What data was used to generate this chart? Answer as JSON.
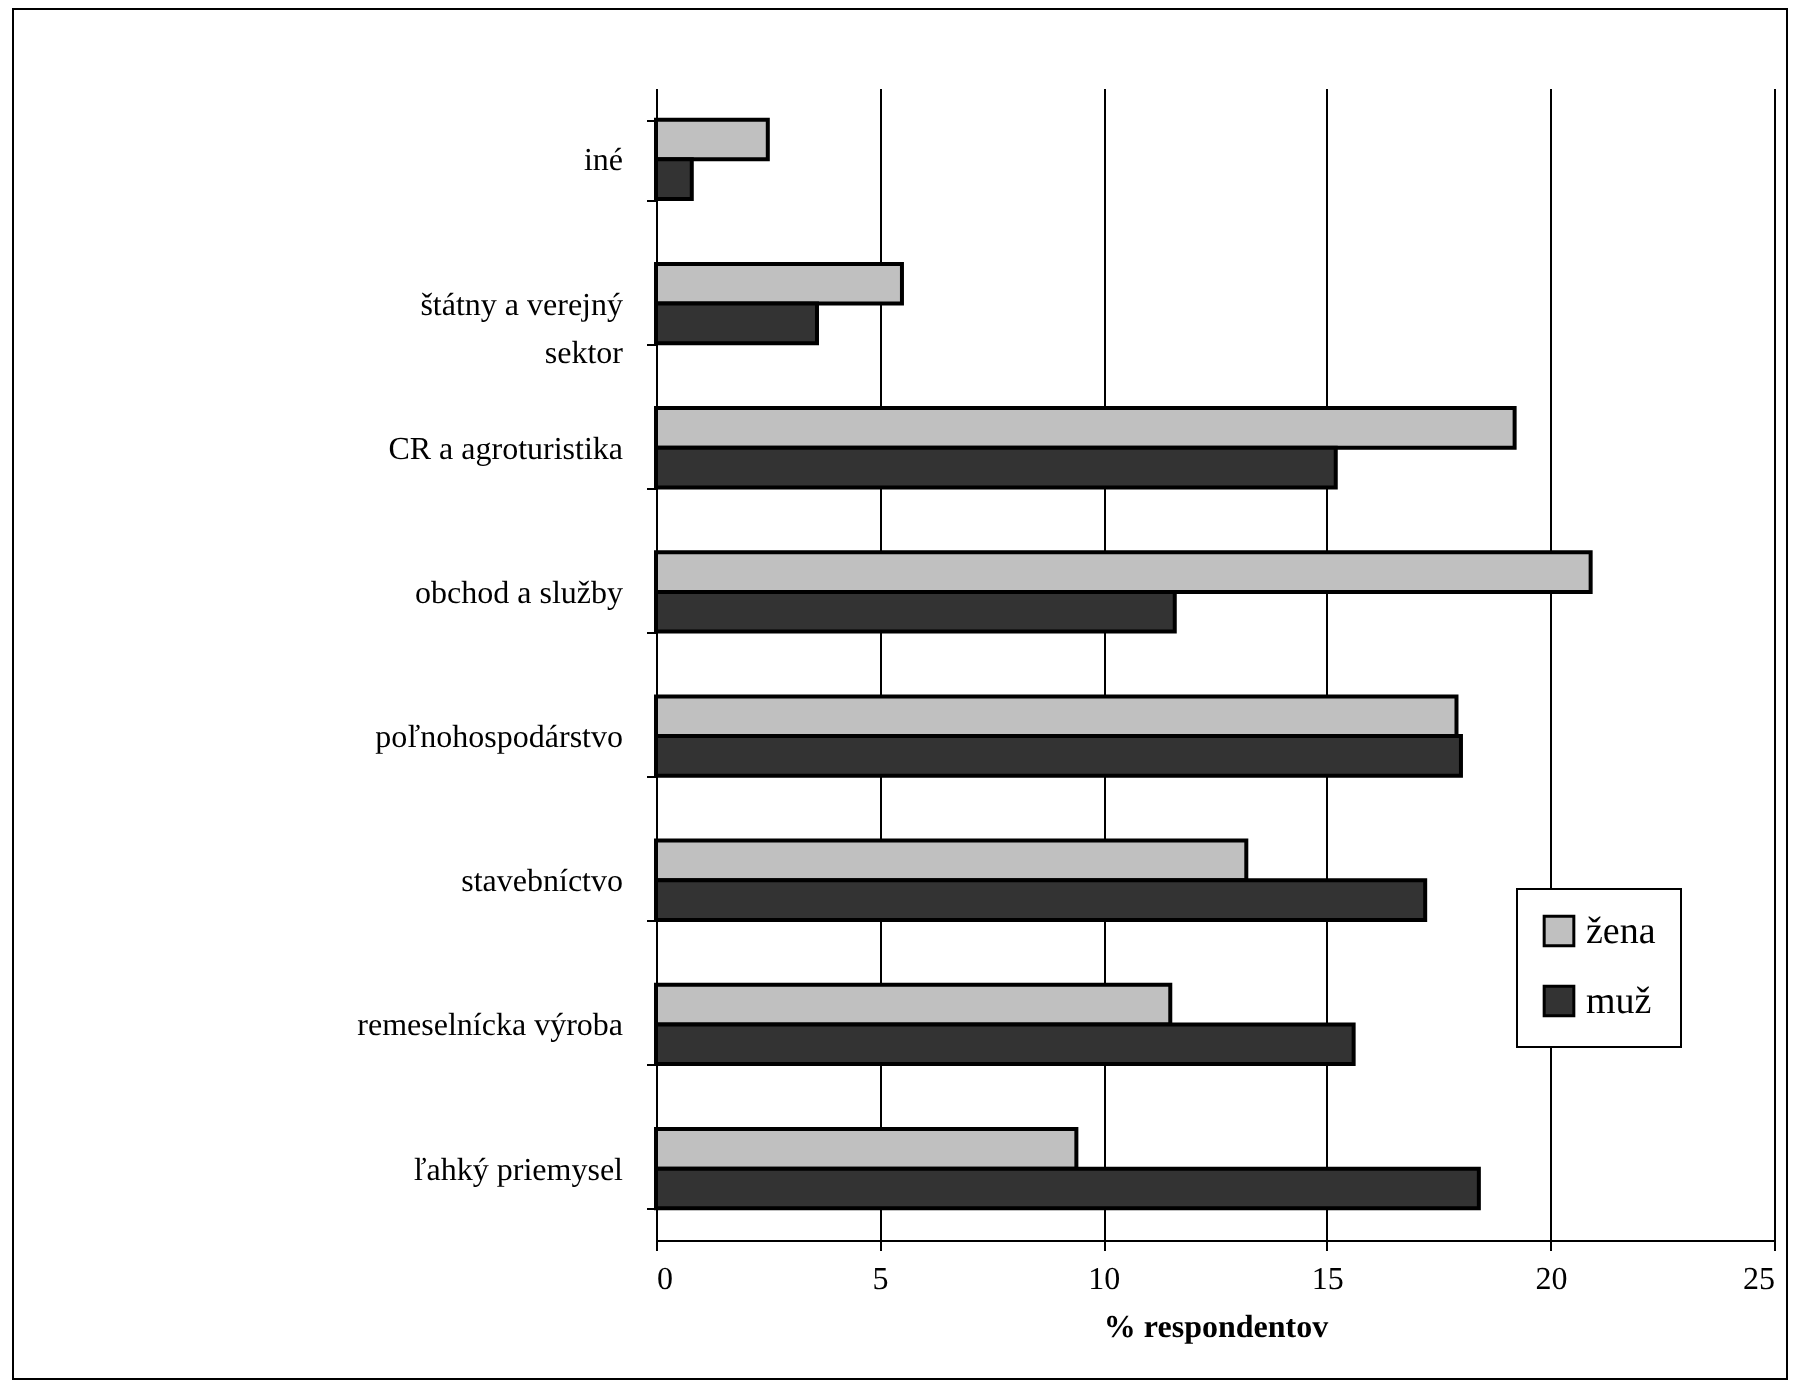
{
  "chart_data": {
    "type": "bar",
    "orientation": "horizontal",
    "xlabel": "% respondentov",
    "categories": [
      "iné",
      "štátny a verejný sektor",
      "CR a agroturistika",
      "obchod a služby",
      "poľnohospodárstvo",
      "stavebníctvo",
      "remeselnícka výroba",
      "ľahký priemysel"
    ],
    "series": [
      {
        "name": "žena",
        "color": "#c0c0c0",
        "values": [
          2.5,
          5.5,
          19.2,
          20.9,
          17.9,
          13.2,
          11.5,
          9.4
        ]
      },
      {
        "name": "muž",
        "color": "#333333",
        "values": [
          0.8,
          3.6,
          15.2,
          11.6,
          18.0,
          17.2,
          15.6,
          18.4
        ]
      }
    ],
    "xlim": [
      0,
      25
    ],
    "xticks": [
      0,
      5,
      10,
      15,
      20,
      25
    ],
    "grid": "x",
    "legend": "right"
  }
}
